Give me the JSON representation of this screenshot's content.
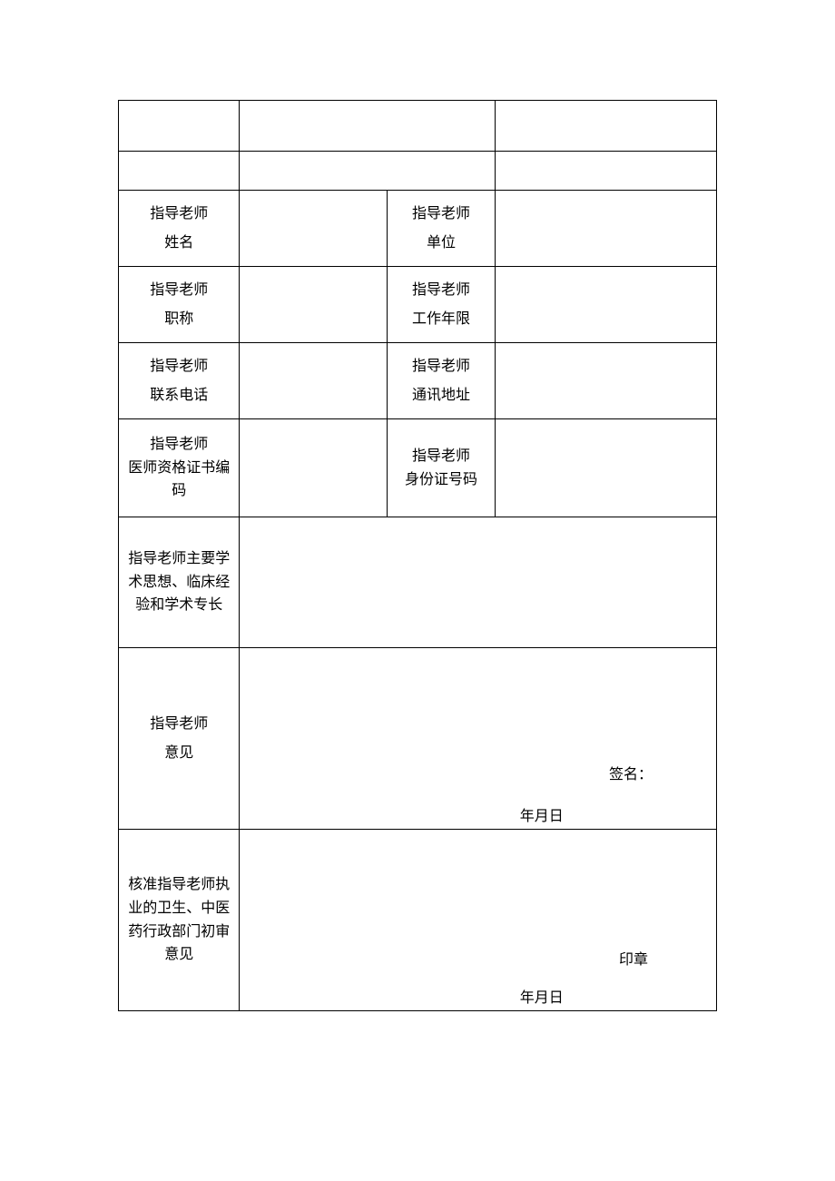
{
  "labels": {
    "teacher_name": {
      "line1": "指导老师",
      "line2": "姓名"
    },
    "teacher_unit": {
      "line1": "指导老师",
      "line2": "单位"
    },
    "teacher_title": {
      "line1": "指导老师",
      "line2": "职称"
    },
    "teacher_years": {
      "line1": "指导老师",
      "line2": "工作年限"
    },
    "teacher_phone": {
      "line1": "指导老师",
      "line2": "联系电话"
    },
    "teacher_address": {
      "line1": "指导老师",
      "line2": "通讯地址"
    },
    "teacher_cert": {
      "line1": "指导老师",
      "line2": "医师资格证书编",
      "line3": "码"
    },
    "teacher_id": {
      "line1": "指导老师",
      "line2": "身份证号码"
    },
    "teacher_academic": {
      "line1": "指导老师主要学",
      "line2": "术思想、临床经",
      "line3": "验和学术专长"
    },
    "teacher_opinion": {
      "line1": "指导老师",
      "line2": "意见"
    },
    "dept_review": {
      "line1": "核准指导老师执",
      "line2": "业的卫生、中医",
      "line3": "药行政部门初审",
      "line4": "意见"
    }
  },
  "sig": {
    "signature": "签名：",
    "seal": "印章",
    "date": "年月日"
  },
  "values": {
    "blank1_col1": "",
    "blank1_col2": "",
    "blank1_col3": "",
    "blank2_col1": "",
    "blank2_col2": "",
    "blank2_col3": "",
    "teacher_name": "",
    "teacher_unit": "",
    "teacher_title": "",
    "teacher_years": "",
    "teacher_phone": "",
    "teacher_address": "",
    "teacher_cert": "",
    "teacher_id": "",
    "teacher_academic": "",
    "teacher_opinion": "",
    "dept_review": ""
  },
  "style": {
    "border_color": "#000000",
    "background": "#ffffff",
    "font_size": 16,
    "font_family": "SimSun"
  }
}
